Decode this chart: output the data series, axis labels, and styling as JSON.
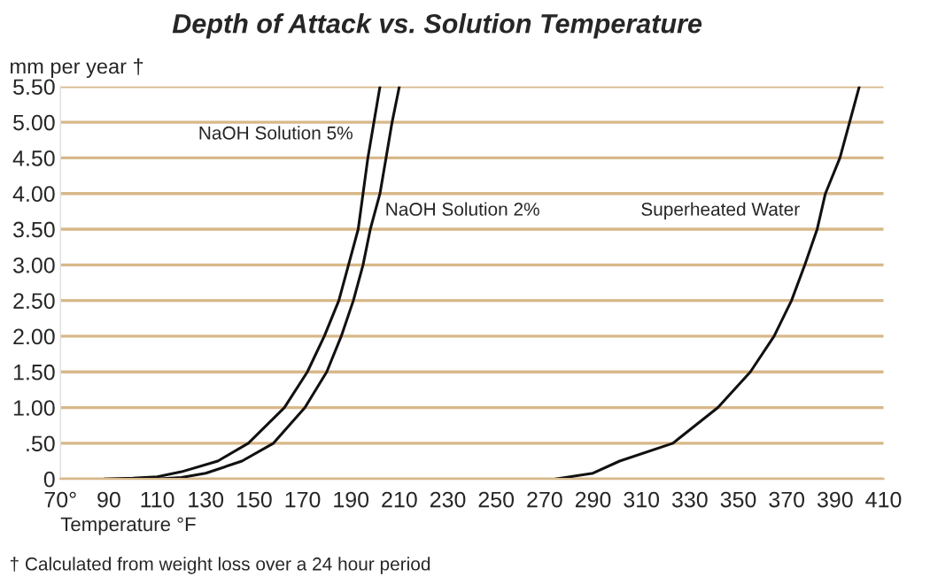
{
  "chart_data": {
    "type": "line",
    "title": "Depth of Attack vs. Solution Temperature",
    "xlabel": "Temperature °F",
    "ylabel": "mm per year †",
    "series": [
      {
        "name": "NaOH Solution 5%",
        "x": [
          88,
          100,
          110,
          120,
          135,
          147.6,
          162.5,
          172,
          179,
          185,
          189,
          193,
          195,
          197,
          199.5,
          202
        ],
        "values": [
          0,
          0.01,
          0.03,
          0.1,
          0.25,
          0.5,
          1.0,
          1.5,
          2.0,
          2.5,
          3.0,
          3.5,
          4.0,
          4.5,
          5.0,
          5.5
        ],
        "color": "#111111"
      },
      {
        "name": "NaOH Solution 2%",
        "x": [
          110,
          120,
          130,
          145,
          158,
          171,
          180,
          186,
          191,
          195,
          198,
          202,
          204.5,
          207,
          210
        ],
        "values": [
          0,
          0.02,
          0.08,
          0.25,
          0.5,
          1.0,
          1.5,
          2.0,
          2.5,
          3.0,
          3.5,
          4.0,
          4.5,
          5.0,
          5.5
        ],
        "color": "#111111"
      },
      {
        "name": "Superheated Water",
        "x": [
          274.5,
          290,
          301,
          323,
          341.6,
          355,
          364.8,
          372,
          377.5,
          382.6,
          386,
          392,
          396,
          400
        ],
        "values": [
          0,
          0.08,
          0.25,
          0.5,
          1.0,
          1.5,
          2.0,
          2.5,
          3.0,
          3.5,
          4.0,
          4.5,
          5.0,
          5.5
        ],
        "color": "#111111"
      }
    ],
    "xlim": [
      70,
      410
    ],
    "ylim": [
      0,
      5.5
    ],
    "xticks": [
      {
        "value": 70,
        "label": "70°"
      },
      90,
      110,
      130,
      150,
      170,
      190,
      210,
      230,
      250,
      270,
      290,
      310,
      330,
      350,
      370,
      390,
      410
    ],
    "yticks": [
      0,
      {
        "value": 0.5,
        "label": ".50"
      },
      {
        "value": 1,
        "label": "1.00"
      },
      {
        "value": 1.5,
        "label": "1.50"
      },
      {
        "value": 2,
        "label": "2.00"
      },
      {
        "value": 2.5,
        "label": "2.50"
      },
      {
        "value": 3,
        "label": "3.00"
      },
      {
        "value": 3.5,
        "label": "3.50"
      },
      {
        "value": 4,
        "label": "4.00"
      },
      {
        "value": 4.5,
        "label": "4.50"
      },
      {
        "value": 5,
        "label": "5.00"
      },
      {
        "value": 5.5,
        "label": "5.50"
      }
    ],
    "grid": "y",
    "marker": "none",
    "line_style": "solid",
    "legend": false,
    "annotations": [
      "† Calculated from weight loss over a 24 hour period"
    ]
  }
}
